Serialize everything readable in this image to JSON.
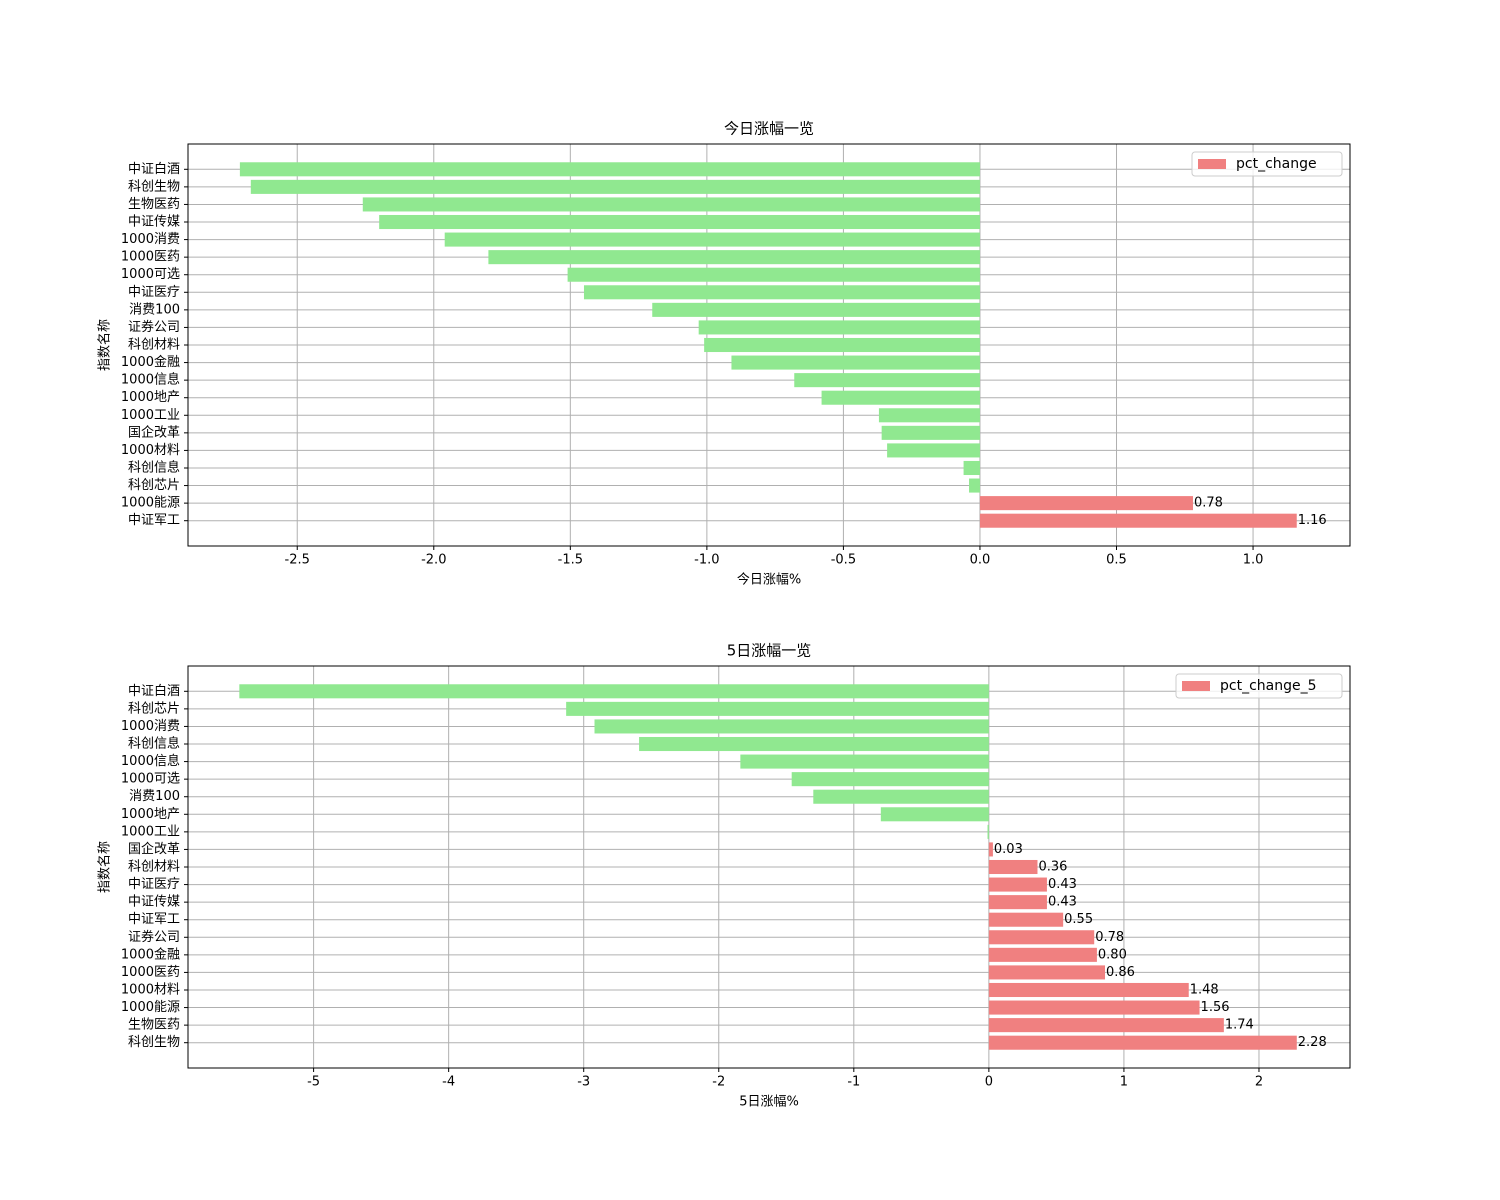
{
  "chart_data": [
    {
      "type": "barh",
      "title": "今日涨幅一览",
      "xlabel": "今日涨幅%",
      "ylabel": "指数名称",
      "categories": [
        "中证白酒",
        "科创生物",
        "生物医药",
        "中证传媒",
        "1000消费",
        "1000医药",
        "1000可选",
        "中证医疗",
        "消费100",
        "证券公司",
        "科创材料",
        "1000金融",
        "1000信息",
        "1000地产",
        "1000工业",
        "国企改革",
        "1000材料",
        "科创信息",
        "科创芯片",
        "1000能源",
        "中证军工"
      ],
      "series": [
        {
          "name": "pct_change",
          "color": "#f08080",
          "negative_color": "#90e890",
          "values": [
            -2.71,
            -2.67,
            -2.26,
            -2.2,
            -1.96,
            -1.8,
            -1.51,
            -1.45,
            -1.2,
            -1.03,
            -1.01,
            -0.91,
            -0.68,
            -0.58,
            -0.37,
            -0.36,
            -0.34,
            -0.06,
            -0.04,
            0.78,
            1.16
          ],
          "value_labels": [
            null,
            null,
            null,
            null,
            null,
            null,
            null,
            null,
            null,
            null,
            null,
            null,
            null,
            null,
            null,
            null,
            null,
            null,
            null,
            "0.78",
            "1.16"
          ]
        }
      ],
      "xlim": [
        -2.9,
        1.355
      ],
      "xticks": [
        -2.5,
        {
          "value": -2,
          "label": "-2.0"
        },
        -1.5,
        {
          "value": -1,
          "label": "-1.0"
        },
        -0.5,
        {
          "value": 0,
          "label": "0.0"
        },
        0.5,
        {
          "value": 1,
          "label": "1.0"
        }
      ],
      "grid": true,
      "legend": "upper right"
    },
    {
      "type": "barh",
      "title": "5日涨幅一览",
      "xlabel": "5日涨幅%",
      "ylabel": "指数名称",
      "categories": [
        "中证白酒",
        "科创芯片",
        "1000消费",
        "科创信息",
        "1000信息",
        "1000可选",
        "消费100",
        "1000地产",
        "1000工业",
        "国企改革",
        "科创材料",
        "中证医疗",
        "中证传媒",
        "中证军工",
        "证券公司",
        "1000金融",
        "1000医药",
        "1000材料",
        "1000能源",
        "生物医药",
        "科创生物"
      ],
      "series": [
        {
          "name": "pct_change_5",
          "color": "#f08080",
          "negative_color": "#90e890",
          "values": [
            -5.55,
            -3.13,
            -2.92,
            -2.59,
            -1.84,
            -1.46,
            -1.3,
            -0.8,
            -0.01,
            0.03,
            0.36,
            0.43,
            0.43,
            0.55,
            0.78,
            0.8,
            0.86,
            1.48,
            1.56,
            1.74,
            2.28
          ],
          "value_labels": [
            null,
            null,
            null,
            null,
            null,
            null,
            null,
            null,
            null,
            "0.03",
            "0.36",
            "0.43",
            "0.43",
            "0.55",
            "0.78",
            "0.80",
            "0.86",
            "1.48",
            "1.56",
            "1.74",
            "2.28"
          ]
        }
      ],
      "xlim": [
        -5.93,
        2.674
      ],
      "xticks": [
        -5,
        -4,
        -3,
        -2,
        -1,
        0,
        1,
        2
      ],
      "grid": true,
      "legend": "upper right"
    }
  ]
}
